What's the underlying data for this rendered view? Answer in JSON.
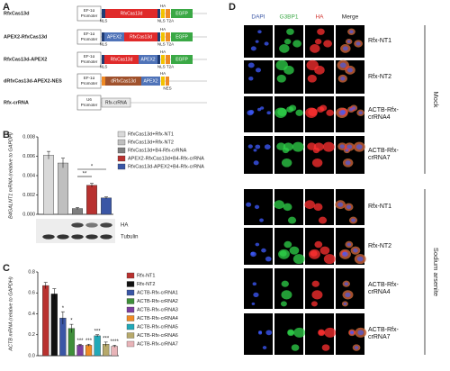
{
  "panel_labels": [
    "A",
    "B",
    "C",
    "D"
  ],
  "constructs": [
    {
      "name": "RfxCas13d",
      "name_color": "#8c8c8c",
      "promoter": [
        "EF-1α",
        "Promoter"
      ],
      "blocks": [
        "RfxCas13d",
        "EGFP"
      ],
      "above": [
        "HA"
      ],
      "below": [
        "NLS",
        "NLS T2A"
      ]
    },
    {
      "name": "APEX2-RfxCas13d",
      "name_color": "#c0392b",
      "promoter": [
        "EF-1α",
        "Promoter"
      ],
      "blocks": [
        "APEX2",
        "RfxCas13d",
        "EGFP"
      ],
      "above": [
        "HA"
      ],
      "below": [
        "NLS",
        "NLS T2A"
      ]
    },
    {
      "name": "RfxCas13d-APEX2",
      "name_color": "#3a56a5",
      "promoter": [
        "EF-1α",
        "Promoter"
      ],
      "blocks": [
        "RfxCas13d",
        "APEX2",
        "EGFP"
      ],
      "above": [
        "HA"
      ],
      "below": [
        "NLS",
        "NLS T2A"
      ]
    },
    {
      "name": "dRfxCas13d-APEX2-NES",
      "name_color": "#333333",
      "promoter": [
        "EF-1α",
        "Promoter"
      ],
      "blocks": [
        "dRfxCas13d",
        "APEX2"
      ],
      "above": [
        "HA"
      ],
      "below": [
        "NES"
      ]
    },
    {
      "name": "Rfx-crRNA",
      "name_color": "#333333",
      "promoter": [
        "U6",
        "Promoter"
      ],
      "blocks": [
        "Rfx-crRNA"
      ],
      "above": [],
      "below": []
    }
  ],
  "chart_data": [
    {
      "type": "bar",
      "y_label": "B4GALNT1 mRNA (relative to GAPDH)",
      "ylim": [
        0,
        0.008
      ],
      "yticks": [
        {
          "value": 0,
          "label": "0.000"
        },
        0.002,
        0.004,
        0.006,
        0.008
      ],
      "series": [
        {
          "name": "RfxCas13d+Rfx-NT1",
          "color": "#d9d9d9",
          "values": [
            0.0061
          ],
          "errors": [
            0.0004
          ]
        },
        {
          "name": "RfxCas13d+Rfx-NT2",
          "color": "#bfbfbf",
          "values": [
            0.0053
          ],
          "errors": [
            0.0005
          ]
        },
        {
          "name": "RfxCas13d+B4-Rfx-crRNA",
          "color": "#7f7f7f",
          "values": [
            0.0006
          ],
          "errors": [
            0.0001
          ]
        },
        {
          "name": "APEX2-RfxCas13d+B4-Rfx-crRNA",
          "color": "#b8312f",
          "values": [
            0.003
          ],
          "errors": [
            0.0002
          ]
        },
        {
          "name": "RfxCas13d-APEX2+B4-Rfx-crRNA",
          "color": "#3a56a5",
          "values": [
            0.0017
          ],
          "errors": [
            0.0001
          ]
        }
      ],
      "significance": [
        "**",
        "*"
      ],
      "blot": [
        "HA",
        "Tubulin"
      ]
    },
    {
      "type": "bar",
      "y_label": "ACTB mRNA (relative to GAPDH)",
      "ylim": [
        0,
        0.8
      ],
      "yticks": [
        {
          "value": 0,
          "label": "0.0"
        },
        0.2,
        0.4,
        0.6,
        0.8
      ],
      "series": [
        {
          "name": "Rfx-NT1",
          "color": "#b8312f",
          "values": [
            0.67
          ],
          "errors": [
            0.03
          ]
        },
        {
          "name": "Rfx-NT2",
          "color": "#111111",
          "values": [
            0.59
          ],
          "errors": [
            0.05
          ]
        },
        {
          "name": "ACTB-Rfx-crRNA1",
          "color": "#3a56a5",
          "values": [
            0.36
          ],
          "errors": [
            0.06
          ]
        },
        {
          "name": "ACTB-Rfx-crRNA2",
          "color": "#3f8f3a",
          "values": [
            0.26
          ],
          "errors": [
            0.04
          ]
        },
        {
          "name": "ACTB-Rfx-crRNA3",
          "color": "#7b3f9e",
          "values": [
            0.1
          ],
          "errors": [
            0.01
          ]
        },
        {
          "name": "ACTB-Rfx-crRNA4",
          "color": "#f08a24",
          "values": [
            0.1
          ],
          "errors": [
            0.01
          ]
        },
        {
          "name": "ACTB-Rfx-crRNA5",
          "color": "#22a9b8",
          "values": [
            0.19
          ],
          "errors": [
            0.01
          ]
        },
        {
          "name": "ACTB-Rfx-crRNA6",
          "color": "#b7a96b",
          "values": [
            0.11
          ],
          "errors": [
            0.02
          ]
        },
        {
          "name": "ACTB-Rfx-crRNA7",
          "color": "#e8b4b8",
          "values": [
            0.09
          ],
          "errors": [
            0.01
          ]
        }
      ],
      "annotations": [
        null,
        null,
        "*",
        "*",
        "***",
        "***",
        "***",
        "***",
        "****"
      ]
    }
  ],
  "microscopy": {
    "channels": [
      "DAPI",
      "G3BP1",
      "HA",
      "Merge"
    ],
    "groups": [
      {
        "name": "Mock",
        "rows": [
          "Rfx-NT1",
          "Rfx-NT2",
          "ACTB-Rfx-crRNA4",
          "ACTB-Rfx-crRNA7"
        ]
      },
      {
        "name": "Sodium arsenite",
        "rows": [
          "Rfx-NT1",
          "Rfx-NT2",
          "ACTB-Rfx-crRNA4",
          "ACTB-Rfx-crRNA7"
        ]
      }
    ]
  }
}
